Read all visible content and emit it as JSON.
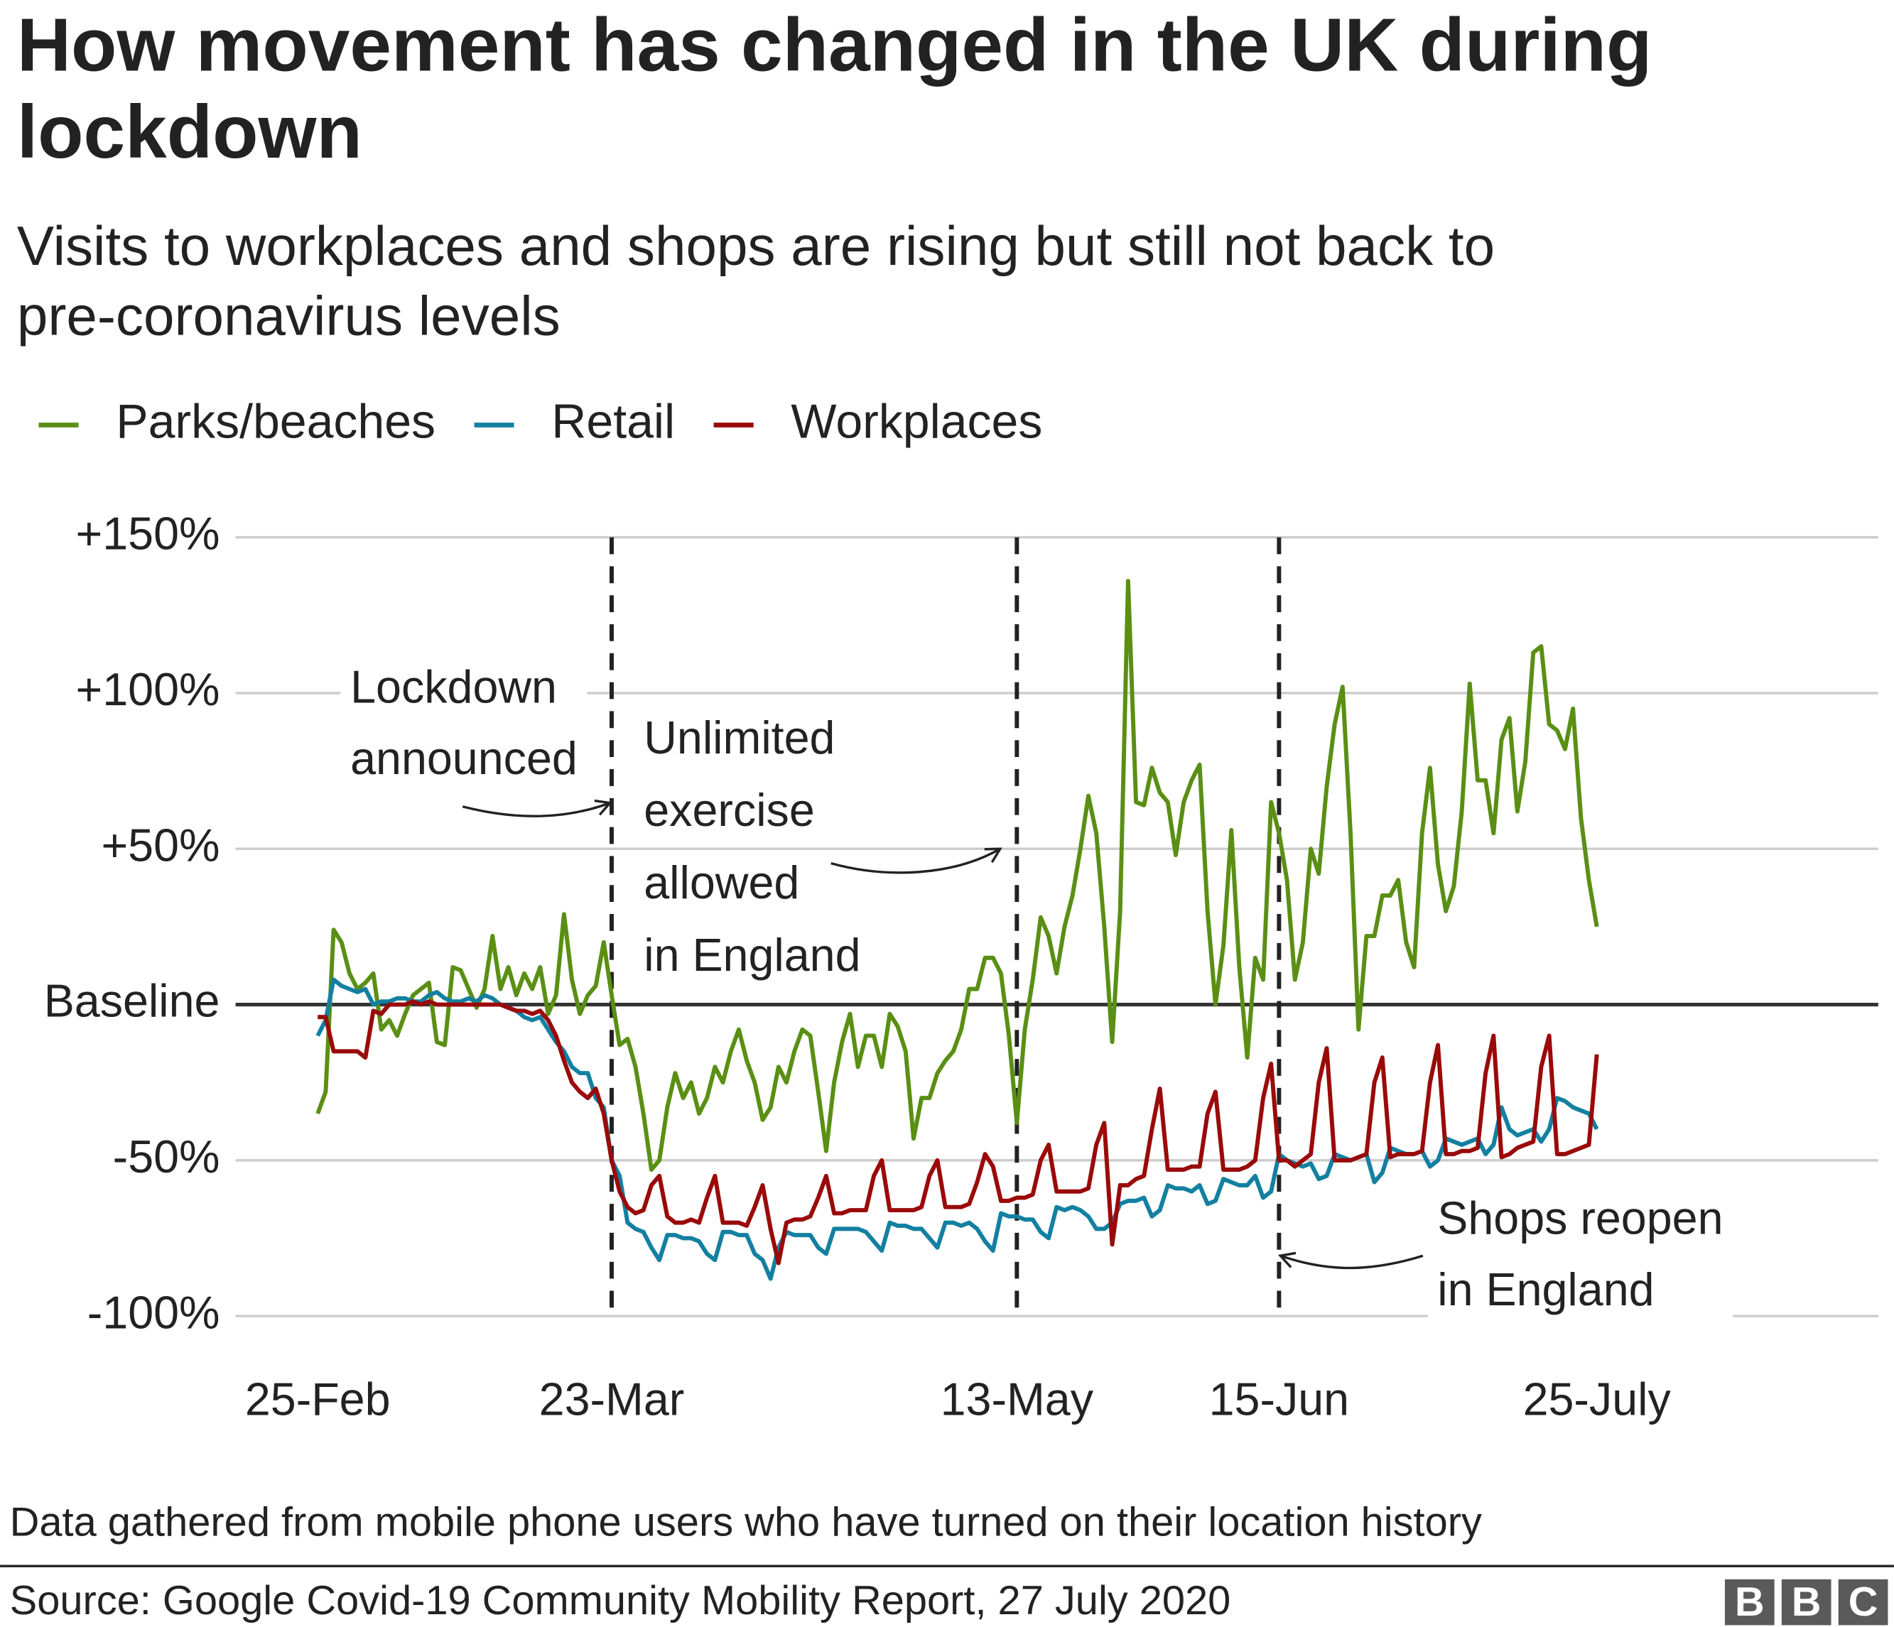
{
  "chart_data": {
    "type": "line",
    "title": "How movement has changed in the UK during lockdown",
    "subtitle": "Visits to workplaces and shops are rising but still not back to pre-coronavirus levels",
    "categories": [
      "25-Feb",
      null,
      null,
      null,
      null,
      null,
      null,
      null,
      null,
      null,
      null,
      null,
      null,
      null,
      null,
      null,
      null,
      null,
      null,
      null,
      null,
      null,
      null,
      null,
      null,
      null,
      null,
      null,
      null,
      null,
      null,
      null,
      null,
      null,
      null,
      null,
      null,
      "23-Mar",
      null,
      null,
      null,
      null,
      null,
      null,
      null,
      null,
      null,
      null,
      null,
      null,
      null,
      null,
      null,
      null,
      null,
      null,
      null,
      null,
      null,
      null,
      null,
      null,
      null,
      null,
      null,
      null,
      null,
      null,
      null,
      null,
      null,
      null,
      null,
      null,
      null,
      null,
      null,
      null,
      null,
      null,
      null,
      null,
      null,
      null,
      null,
      null,
      null,
      null,
      "13-May",
      null,
      null,
      null,
      null,
      null,
      null,
      null,
      null,
      null,
      null,
      null,
      null,
      null,
      null,
      null,
      null,
      null,
      null,
      null,
      null,
      null,
      null,
      null,
      null,
      null,
      null,
      null,
      null,
      null,
      null,
      null,
      null,
      "15-Jun",
      null,
      null,
      null,
      null,
      null,
      null,
      null,
      null,
      null,
      null,
      null,
      null,
      null,
      null,
      null,
      null,
      null,
      null,
      null,
      null,
      null,
      null,
      null,
      null,
      null,
      null,
      null,
      null,
      null,
      null,
      null,
      null,
      null,
      null,
      null,
      null,
      null,
      null,
      null,
      "25-July"
    ],
    "series": [
      {
        "name": "Parks/beaches",
        "color": "#5a8f14",
        "values": [
          -35,
          -28,
          24,
          20,
          10,
          5,
          7,
          10,
          -8,
          -5,
          -10,
          -3,
          3,
          5,
          7,
          -12,
          -13,
          12,
          11,
          5,
          -1,
          5,
          22,
          5,
          12,
          3,
          10,
          5,
          12,
          -3,
          3,
          29,
          8,
          -3,
          3,
          6,
          20,
          3,
          -13,
          -11,
          -20,
          -35,
          -53,
          -50,
          -33,
          -22,
          -30,
          -25,
          -35,
          -30,
          -20,
          -25,
          -15,
          -8,
          -18,
          -25,
          -37,
          -33,
          -20,
          -25,
          -15,
          -8,
          -10,
          -28,
          -47,
          -25,
          -12,
          -3,
          -20,
          -10,
          -10,
          -20,
          -3,
          -7,
          -15,
          -43,
          -30,
          -30,
          -22,
          -18,
          -15,
          -8,
          5,
          5,
          15,
          15,
          10,
          -10,
          -38,
          -8,
          8,
          28,
          22,
          10,
          25,
          35,
          50,
          67,
          55,
          25,
          -12,
          30,
          136,
          65,
          64,
          76,
          68,
          65,
          48,
          65,
          72,
          77,
          30,
          0,
          19,
          56,
          12,
          -17,
          15,
          8,
          65,
          55,
          40,
          8,
          20,
          50,
          42,
          70,
          90,
          102,
          55,
          -8,
          22,
          22,
          35,
          35,
          40,
          20,
          12,
          55,
          76,
          45,
          30,
          38,
          62,
          103,
          72,
          72,
          55,
          85,
          92,
          62,
          78,
          113,
          115,
          90,
          88,
          82,
          95,
          60,
          40,
          25
        ]
      },
      {
        "name": "Retail",
        "color": "#1380a1",
        "values": [
          -10,
          -5,
          8,
          6,
          5,
          4,
          5,
          0,
          1,
          1,
          2,
          2,
          1,
          1,
          3,
          4,
          2,
          1,
          1,
          2,
          1,
          3,
          2,
          0,
          -1,
          -2,
          -4,
          -5,
          -4,
          -8,
          -12,
          -15,
          -20,
          -22,
          -22,
          -30,
          -33,
          -50,
          -55,
          -70,
          -72,
          -73,
          -78,
          -82,
          -74,
          -74,
          -75,
          -75,
          -76,
          -80,
          -82,
          -73,
          -73,
          -74,
          -74,
          -80,
          -82,
          -88,
          -78,
          -73,
          -74,
          -74,
          -74,
          -78,
          -80,
          -72,
          -72,
          -72,
          -72,
          -73,
          -76,
          -79,
          -70,
          -71,
          -71,
          -72,
          -72,
          -75,
          -78,
          -70,
          -70,
          -71,
          -70,
          -72,
          -76,
          -79,
          -67,
          -68,
          -68,
          -69,
          -69,
          -73,
          -75,
          -65,
          -66,
          -65,
          -66,
          -68,
          -72,
          -72,
          -70,
          -64,
          -63,
          -63,
          -62,
          -68,
          -66,
          -58,
          -59,
          -59,
          -60,
          -58,
          -64,
          -63,
          -56,
          -57,
          -58,
          -58,
          -55,
          -62,
          -60,
          -48,
          -50,
          -51,
          -52,
          -51,
          -56,
          -55,
          -48,
          -49,
          -50,
          -49,
          -48,
          -57,
          -54,
          -46,
          -47,
          -48,
          -48,
          -47,
          -52,
          -50,
          -43,
          -44,
          -45,
          -44,
          -43,
          -48,
          -45,
          -33,
          -40,
          -42,
          -41,
          -40,
          -44,
          -40,
          -30,
          -31,
          -33,
          -34,
          -35,
          -40
        ]
      },
      {
        "name": "Workplaces",
        "color": "#9a0a0a",
        "values": [
          -4,
          -4,
          -15,
          -15,
          -15,
          -15,
          -17,
          -2,
          -3,
          0,
          0,
          0,
          1,
          0,
          1,
          0,
          0,
          0,
          0,
          0,
          0,
          0,
          0,
          0,
          -1,
          -2,
          -2,
          -3,
          -2,
          -5,
          -10,
          -18,
          -25,
          -28,
          -30,
          -27,
          -35,
          -50,
          -60,
          -65,
          -67,
          -66,
          -58,
          -55,
          -68,
          -70,
          -70,
          -69,
          -70,
          -62,
          -55,
          -70,
          -70,
          -70,
          -71,
          -65,
          -58,
          -72,
          -83,
          -70,
          -69,
          -69,
          -68,
          -62,
          -55,
          -67,
          -67,
          -66,
          -66,
          -66,
          -55,
          -50,
          -66,
          -66,
          -66,
          -66,
          -65,
          -55,
          -50,
          -65,
          -65,
          -65,
          -64,
          -57,
          -48,
          -52,
          -63,
          -63,
          -62,
          -62,
          -61,
          -50,
          -45,
          -60,
          -60,
          -60,
          -60,
          -59,
          -45,
          -38,
          -77,
          -58,
          -58,
          -56,
          -55,
          -40,
          -27,
          -53,
          -53,
          -53,
          -52,
          -52,
          -35,
          -28,
          -53,
          -53,
          -53,
          -52,
          -50,
          -30,
          -19,
          -50,
          -50,
          -52,
          -50,
          -48,
          -25,
          -14,
          -50,
          -50,
          -50,
          -49,
          -48,
          -25,
          -17,
          -49,
          -48,
          -48,
          -48,
          -47,
          -25,
          -13,
          -48,
          -48,
          -47,
          -47,
          -46,
          -22,
          -10,
          -49,
          -48,
          -46,
          -45,
          -44,
          -20,
          -10,
          -48,
          -48,
          -47,
          -46,
          -45,
          -16
        ]
      }
    ],
    "ylim": [
      -100,
      150
    ],
    "yticks": [
      {
        "value": -100,
        "label": "-100%"
      },
      {
        "value": -50,
        "label": "-50%"
      },
      {
        "value": 0,
        "label": "Baseline"
      },
      {
        "value": 50,
        "label": "+50%"
      },
      {
        "value": 100,
        "label": "+100%"
      },
      {
        "value": 150,
        "label": "+150%"
      }
    ],
    "grid": true,
    "legend": "top-left",
    "annotations": [
      {
        "at": "23-Mar",
        "lines": [
          "Lockdown",
          "announced"
        ]
      },
      {
        "at": "13-May",
        "lines": [
          "Unlimited",
          "exercise",
          "allowed",
          "in England"
        ]
      },
      {
        "at": "15-Jun",
        "lines": [
          "Shops reopen",
          "in England"
        ]
      }
    ],
    "note": "Data gathered from mobile phone users who have turned on their location history",
    "source": "Source: Google Covid-19 Community Mobility Report, 27 July 2020",
    "logo": [
      "B",
      "B",
      "C"
    ]
  }
}
